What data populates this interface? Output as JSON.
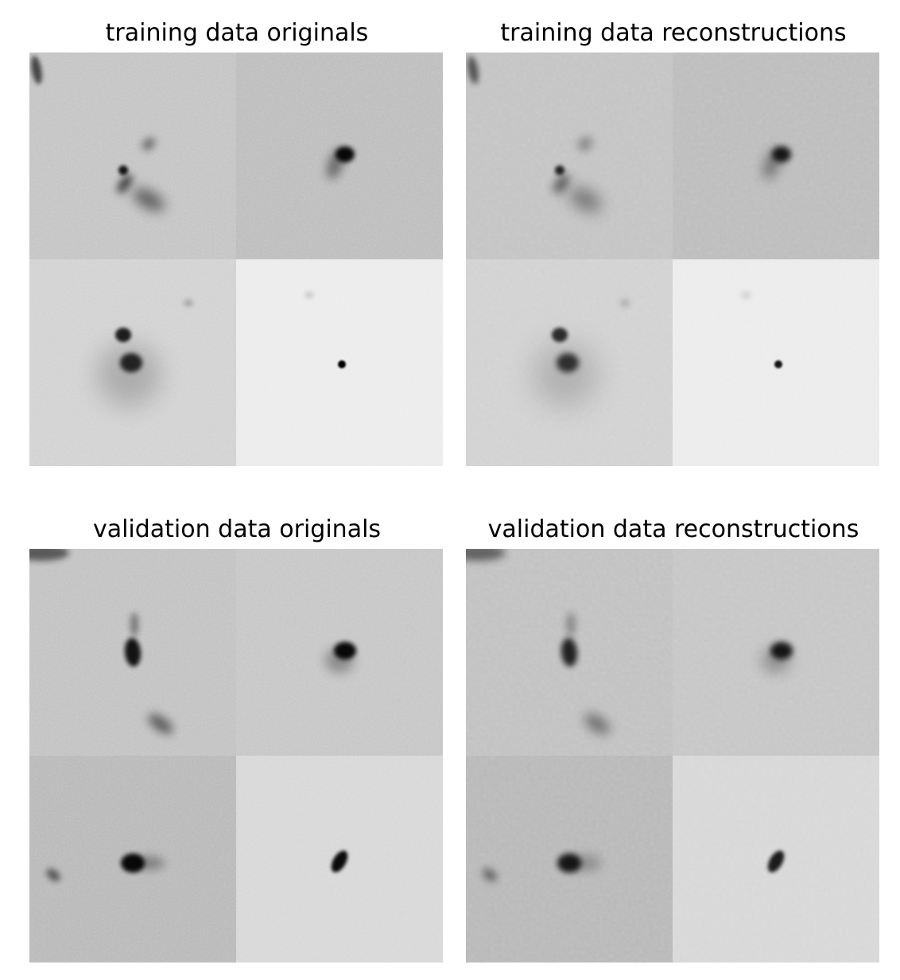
{
  "panels": [
    {
      "id": "train-orig",
      "title": "training data originals",
      "kind": "original"
    },
    {
      "id": "train-rec",
      "title": "training data reconstructions",
      "kind": "reconstruction"
    },
    {
      "id": "val-orig",
      "title": "validation data originals",
      "kind": "original"
    },
    {
      "id": "val-rec",
      "title": "validation data reconstructions",
      "kind": "reconstruction"
    }
  ]
}
